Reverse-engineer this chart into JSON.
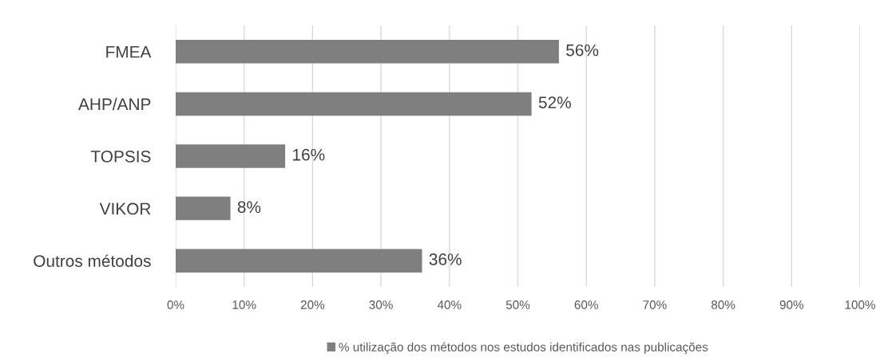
{
  "chart_data": {
    "type": "bar",
    "orientation": "horizontal",
    "categories": [
      "FMEA",
      "AHP/ANP",
      "TOPSIS",
      "VIKOR",
      "Outros métodos"
    ],
    "series": [
      {
        "name": "% utilização dos métodos nos estudos identificados nas publicações",
        "color": "#7f7f7f",
        "values": [
          56,
          52,
          16,
          8,
          36
        ],
        "value_labels": [
          "56%",
          "52%",
          "16%",
          "8%",
          "36%"
        ]
      }
    ],
    "xlim": [
      0,
      100
    ],
    "xticks": [
      {
        "value": 0,
        "label": "0%"
      },
      {
        "value": 10,
        "label": "10%"
      },
      {
        "value": 20,
        "label": "20%"
      },
      {
        "value": 30,
        "label": "30%"
      },
      {
        "value": 40,
        "label": "40%"
      },
      {
        "value": 50,
        "label": "50%"
      },
      {
        "value": 60,
        "label": "60%"
      },
      {
        "value": 70,
        "label": "70%"
      },
      {
        "value": 80,
        "label": "80%"
      },
      {
        "value": 90,
        "label": "90%"
      },
      {
        "value": 100,
        "label": "100%"
      }
    ],
    "grid": "x",
    "legend": "bottom"
  }
}
